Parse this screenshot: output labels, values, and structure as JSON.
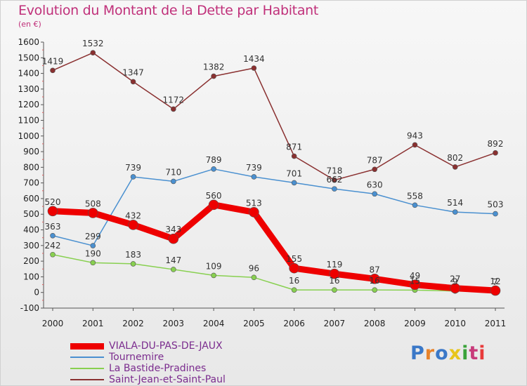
{
  "title": "Evolution du Montant de la Dette par Habitant",
  "subtitle": "(en €)",
  "logo": {
    "text": "Proxiti",
    "colors": [
      "#3a78c8",
      "#e8832a",
      "#3a78c8",
      "#e8c51a",
      "#3aa33a",
      "#c83a7a",
      "#e83a3a"
    ]
  },
  "chart_data": {
    "type": "line",
    "x": [
      "2000",
      "2001",
      "2002",
      "2003",
      "2004",
      "2005",
      "2006",
      "2007",
      "2008",
      "2009",
      "2010",
      "2011"
    ],
    "ylim": [
      -100,
      1600
    ],
    "yticks": [
      -100,
      0,
      100,
      200,
      300,
      400,
      500,
      600,
      700,
      800,
      900,
      1000,
      1100,
      1200,
      1300,
      1400,
      1500,
      1600
    ],
    "grid": false,
    "legend_position": "bottom-left",
    "series": [
      {
        "name": "VIALA-DU-PAS-DE-JAUX",
        "color": "#ee0000",
        "width": 9,
        "marker": 7,
        "values": [
          520,
          508,
          432,
          343,
          560,
          513,
          155,
          119,
          87,
          49,
          27,
          12
        ],
        "labels": [
          "520",
          "508",
          "432",
          "343",
          "560",
          "513",
          "155",
          "119",
          "87",
          "49",
          "27",
          "12"
        ]
      },
      {
        "name": "Tournemire",
        "color": "#4a90d0",
        "width": 1.5,
        "marker": 3.5,
        "values": [
          363,
          299,
          739,
          710,
          789,
          739,
          701,
          662,
          630,
          558,
          514,
          503
        ],
        "labels": [
          "363",
          "299",
          "739",
          "710",
          "789",
          "739",
          "701",
          "662",
          "630",
          "558",
          "514",
          "503"
        ]
      },
      {
        "name": "La Bastide-Pradines",
        "color": "#88d050",
        "width": 1.5,
        "marker": 3.5,
        "values": [
          242,
          190,
          183,
          147,
          109,
          96,
          16,
          16,
          16,
          15,
          9,
          7
        ],
        "labels": [
          "242",
          "190",
          "183",
          "147",
          "109",
          "96",
          "16",
          "16",
          "16",
          "15",
          "9",
          "7"
        ]
      },
      {
        "name": "Saint-Jean-et-Saint-Paul",
        "color": "#8a3030",
        "width": 1.5,
        "marker": 3.5,
        "values": [
          1419,
          1532,
          1347,
          1172,
          1382,
          1434,
          871,
          718,
          787,
          943,
          802,
          892
        ],
        "labels": [
          "1419",
          "1532",
          "1347",
          "1172",
          "1382",
          "1434",
          "871",
          "718",
          "787",
          "943",
          "802",
          "892"
        ]
      }
    ]
  }
}
